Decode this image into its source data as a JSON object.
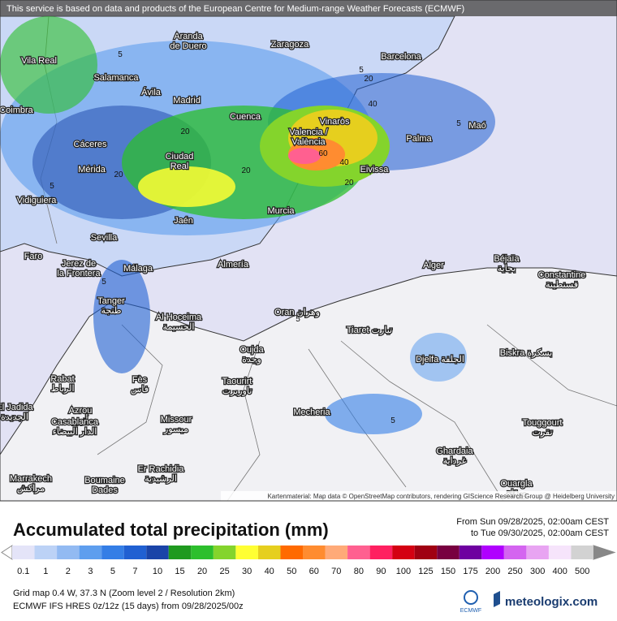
{
  "banner": "This service is based on data and products of the European Centre for Medium-range Weather Forecasts (ECMWF)",
  "map": {
    "cities": [
      {
        "name": "Vila Real"
      },
      {
        "name": "Aranda",
        "name2": "de Duero"
      },
      {
        "name": "Zaragoza"
      },
      {
        "name": "Barcelona"
      },
      {
        "name": "Salamanca"
      },
      {
        "name": "Ávila"
      },
      {
        "name": "Madrid"
      },
      {
        "name": "Coimbra"
      },
      {
        "name": "Cuenca"
      },
      {
        "name": "Vinaròs"
      },
      {
        "name": "Valencia /",
        "name2": "València"
      },
      {
        "name": "Maó"
      },
      {
        "name": "Palma"
      },
      {
        "name": "Cáceres"
      },
      {
        "name": "Ciudad",
        "name2": "Real"
      },
      {
        "name": "Mérida"
      },
      {
        "name": "Eivissa"
      },
      {
        "name": "Vidiguiera"
      },
      {
        "name": "Jaén"
      },
      {
        "name": "Murcia"
      },
      {
        "name": "Sevilla"
      },
      {
        "name": "Faro"
      },
      {
        "name": "Jerez de",
        "name2": "la Frontera"
      },
      {
        "name": "Málaga"
      },
      {
        "name": "Almería"
      },
      {
        "name": "Alger"
      },
      {
        "name": "Béjaïa",
        "name2": "بجاية"
      },
      {
        "name": "Constantine",
        "name2": "قسنطينة"
      },
      {
        "name": "Tanger",
        "name2": "طنجة"
      },
      {
        "name": "Al Hoceima",
        "name2": "الحسيمة"
      },
      {
        "name": "Oran وهران"
      },
      {
        "name": "Tiaret تيارت"
      },
      {
        "name": "Oujda",
        "name2": "وجدة"
      },
      {
        "name": "Biskra بسكرة"
      },
      {
        "name": "Djelfa الجلفة"
      },
      {
        "name": "Rabat",
        "name2": "الرباط"
      },
      {
        "name": "Fès",
        "name2": "فاس"
      },
      {
        "name": "Taourirt",
        "name2": "تاوريرت"
      },
      {
        "name": "El Jadida",
        "name2": "الجديدة"
      },
      {
        "name": "Azrou",
        "name2": "أزرو"
      },
      {
        "name": "Missour",
        "name2": "ميسور"
      },
      {
        "name": "Mecheria"
      },
      {
        "name": "Touggourt",
        "name2": "تقرت"
      },
      {
        "name": "Casablanca",
        "name2": "الدار البيضاء"
      },
      {
        "name": "Ghardaia",
        "name2": "غرداية"
      },
      {
        "name": "Er Rachidia",
        "name2": "الرشيدية"
      },
      {
        "name": "Marrakech",
        "name2": "مراكش"
      },
      {
        "name": "Boumaine",
        "name2": "Dades"
      },
      {
        "name": "Ouargla",
        "name2": "ورقلة"
      }
    ],
    "contour_labels": [
      "5",
      "5",
      "5",
      "20",
      "20",
      "20",
      "20",
      "20",
      "40",
      "40",
      "60",
      "5",
      "5",
      "5",
      "5"
    ],
    "attribution": "Kartenmaterial: Map data © OpenStreetMap contributors, rendering GIScience Research Group @ Heidelberg University"
  },
  "title": "Accumulated total precipitation (mm)",
  "period_from": "From Sun 09/28/2025, 02:00am CEST",
  "period_to": "to Tue 09/30/2025, 02:00am CEST",
  "legend": {
    "labels": [
      0.1,
      1,
      2,
      3,
      5,
      7,
      10,
      15,
      20,
      25,
      30,
      40,
      50,
      60,
      70,
      80,
      90,
      100,
      125,
      150,
      175,
      200,
      250,
      300,
      400,
      500
    ],
    "colors": [
      "#e4e4f8",
      "#bcd2f6",
      "#92baf2",
      "#5e9eee",
      "#347ee6",
      "#2060d2",
      "#1a44a8",
      "#1f9a1f",
      "#2cbf2c",
      "#84d42c",
      "#ffff33",
      "#e6cf1e",
      "#ff6a00",
      "#ff8c30",
      "#ffaa78",
      "#ff6090",
      "#ff2060",
      "#d40012",
      "#a00012",
      "#780040",
      "#6e00a0",
      "#b000ff",
      "#d464f0",
      "#e8a4f2",
      "#f6e4fb",
      "#d2d2d2"
    ]
  },
  "footer_line1": "Grid map 0.4 W, 37.3 N (Zoom level 2 / Resolution 2km)",
  "footer_line2": "ECMWF IFS HRES 0z/12z (15 days) from 09/28/2025/00z",
  "logo_ecmwf": "ECMWF",
  "logo_meteologix": "meteologix.com"
}
